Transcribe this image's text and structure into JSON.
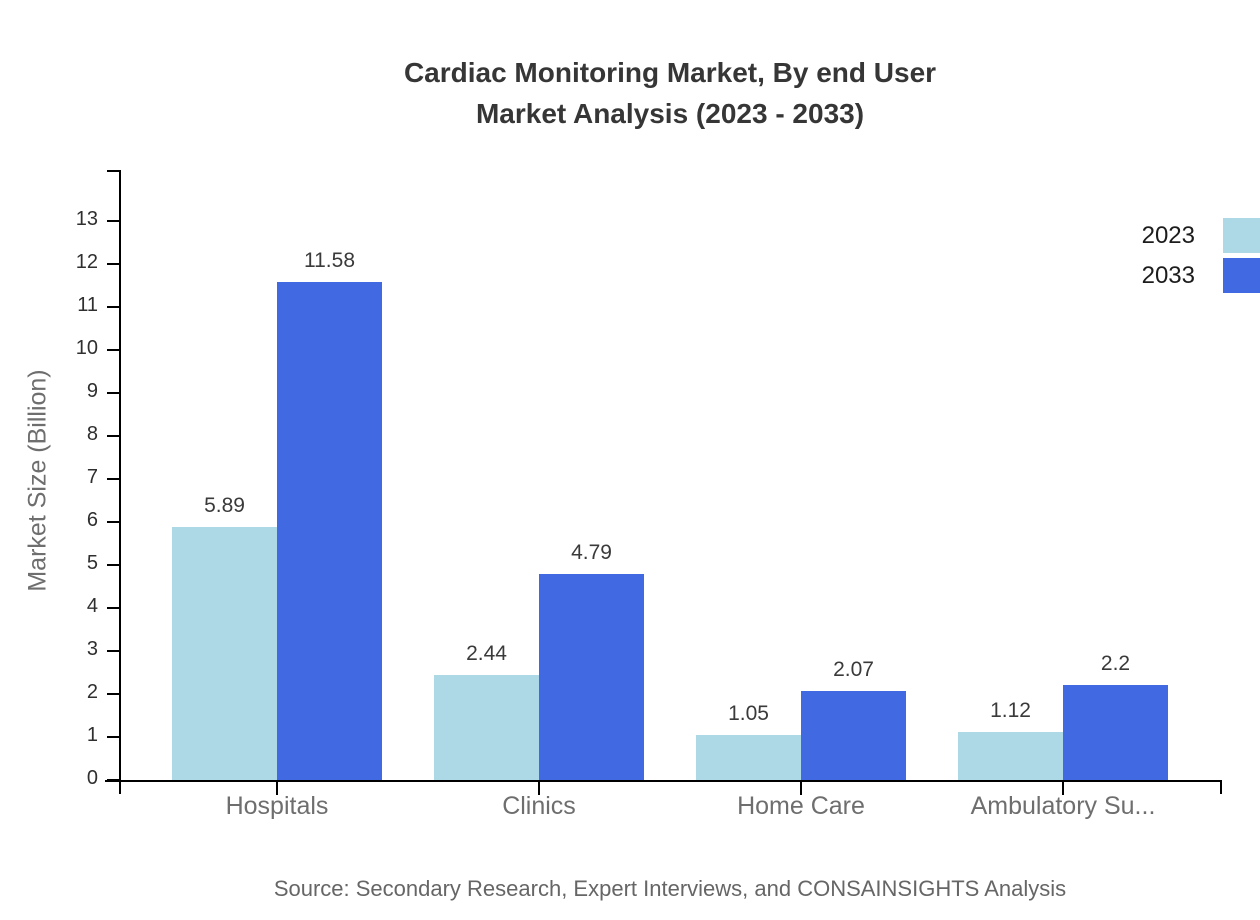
{
  "title": {
    "line1": "Cardiac Monitoring Market, By end User",
    "line2": "Market Analysis (2023 - 2033)"
  },
  "source_note": "Source: Secondary Research, Expert Interviews, and CONSAINSIGHTS Analysis",
  "colors": {
    "series_2023": "#ADD8E6",
    "series_2033": "#4169E1",
    "axis": "#000000",
    "tick_label": "#2f2f2f",
    "category_label": "#6e6e6e",
    "title_text": "#363636",
    "value_label": "#3a3a3a",
    "source_text": "#666666"
  },
  "chart_data": {
    "type": "bar",
    "title": "Cardiac Monitoring Market, By end User Market Analysis (2023 - 2033)",
    "categories": [
      "Hospitals",
      "Clinics",
      "Home Care",
      "Ambulatory Su..."
    ],
    "series": [
      {
        "name": "2023",
        "color": "#ADD8E6",
        "values": [
          5.89,
          2.44,
          1.05,
          1.12
        ]
      },
      {
        "name": "2033",
        "color": "#4169E1",
        "values": [
          11.58,
          4.79,
          2.07,
          2.2
        ]
      }
    ],
    "ylabel": "Market Size (Billion)",
    "xlabel": "",
    "ylim": [
      0,
      14
    ],
    "yticks": [
      0,
      1,
      2,
      3,
      4,
      5,
      6,
      7,
      8,
      9,
      10,
      11,
      12,
      13
    ],
    "grid": false,
    "legend_position": "top-right",
    "bar_value_labels": true
  }
}
